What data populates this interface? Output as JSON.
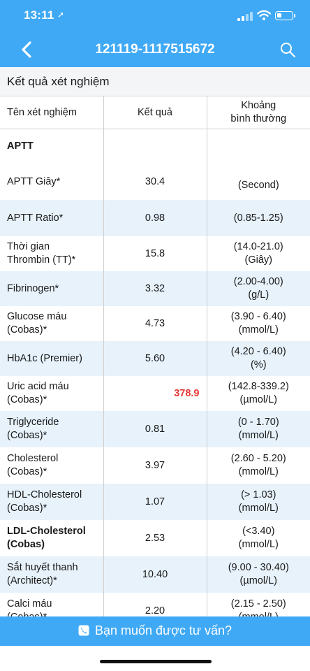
{
  "status_bar": {
    "time": "13:11",
    "battery_level": 0.3
  },
  "navbar": {
    "title": "121119-1117515672"
  },
  "section": {
    "title": "Kết quả xét nghiệm"
  },
  "table": {
    "headers": {
      "name": "Tên xét nghiệm",
      "result": "Kết quả",
      "range_line1": "Khoảng",
      "range_line2": "bình thường"
    },
    "rows": [
      {
        "name1": "APTT",
        "name2": "",
        "result": "",
        "range1": "",
        "range2": ""
      },
      {
        "name1": "APTT Giây*",
        "name2": "",
        "result": "30.4",
        "range1": "",
        "range2": "(Second)"
      },
      {
        "name1": "APTT Ratio*",
        "name2": "",
        "result": "0.98",
        "range1": "(0.85-1.25)",
        "range2": ""
      },
      {
        "name1": "Thời gian",
        "name2": "Thrombin (TT)*",
        "result": "15.8",
        "range1": "(14.0-21.0)",
        "range2": "(Giây)"
      },
      {
        "name1": "Fibrinogen*",
        "name2": "",
        "result": "3.32",
        "range1": "(2.00-4.00)",
        "range2": "(g/L)"
      },
      {
        "name1": "Glucose máu",
        "name2": "(Cobas)*",
        "result": "4.73",
        "range1": "(3.90 - 6.40)",
        "range2": "(mmol/L)"
      },
      {
        "name1": "HbA1c (Premier)",
        "name2": "",
        "result": "5.60",
        "range1": "(4.20 - 6.40)",
        "range2": "(%)"
      },
      {
        "name1": "Uric acid máu",
        "name2": "(Cobas)*",
        "result": "378.9",
        "range1": "(142.8-339.2)",
        "range2": "(µmol/L)"
      },
      {
        "name1": "Triglyceride",
        "name2": "(Cobas)*",
        "result": "0.81",
        "range1": "(0 - 1.70)",
        "range2": "(mmol/L)"
      },
      {
        "name1": "Cholesterol",
        "name2": "(Cobas)*",
        "result": "3.97",
        "range1": "(2.60 - 5.20)",
        "range2": "(mmol/L)"
      },
      {
        "name1": "HDL-Cholesterol",
        "name2": "(Cobas)*",
        "result": "1.07",
        "range1": "(> 1.03)",
        "range2": "(mmol/L)"
      },
      {
        "name1": "LDL-Cholesterol",
        "name2": "(Cobas)",
        "result": "2.53",
        "range1": "(<3.40)",
        "range2": "(mmol/L)"
      },
      {
        "name1": "Sắt huyết thanh",
        "name2": "(Architect)*",
        "result": "10.40",
        "range1": "(9.00 - 30.40)",
        "range2": "(µmol/L)"
      },
      {
        "name1": "Calci máu",
        "name2": "(Cobas)*",
        "result": "2.20",
        "range1": "(2.15 - 2.50)",
        "range2": "(mmol/L)"
      }
    ]
  },
  "colors": {
    "primary": "#3fa9f5",
    "row_alt": "#e7f2fb",
    "abnormal": "#e53935"
  },
  "bottom_bar": {
    "label": "Bạn muốn được tư vấn?"
  },
  "icons": {
    "back": "chevron-left-icon",
    "search": "search-icon",
    "phone": "phone-icon",
    "location": "location-arrow-icon"
  }
}
